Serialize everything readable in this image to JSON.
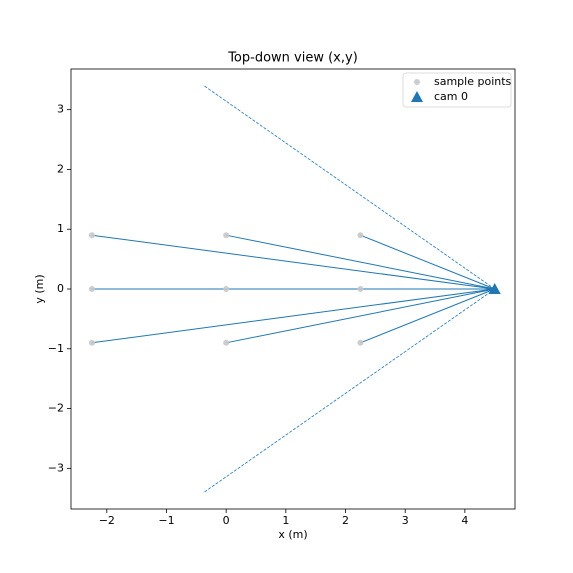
{
  "chart_data": {
    "type": "scatter",
    "title": "Top-down view (x,y)",
    "xlabel": "x (m)",
    "ylabel": "y (m)",
    "xlim": [
      -2.6,
      4.84
    ],
    "ylim": [
      -3.68,
      3.68
    ],
    "xticks": [
      {
        "value": -2,
        "label": "−2"
      },
      {
        "value": -1,
        "label": "−1"
      },
      0,
      1,
      2,
      3,
      4
    ],
    "yticks": [
      {
        "value": -3,
        "label": "−3"
      },
      {
        "value": -2,
        "label": "−2"
      },
      {
        "value": -1,
        "label": "−1"
      },
      0,
      1,
      2,
      3
    ],
    "legend": "upper right",
    "series": [
      {
        "name": "sample points",
        "color": "#c8c8c8",
        "marker": "circle",
        "x": [
          -2.25,
          0,
          2.25,
          -2.25,
          0,
          2.25,
          -2.25,
          0,
          2.25
        ],
        "y": [
          0.9,
          0.9,
          0.9,
          0,
          0,
          0,
          -0.9,
          -0.9,
          -0.9
        ]
      },
      {
        "name": "cam 0",
        "color": "#1f77b4",
        "marker": "triangle",
        "x": [
          4.5
        ],
        "y": [
          0
        ]
      }
    ],
    "fov_lines": [
      {
        "x": [
          4.5,
          -0.385
        ],
        "y": [
          0,
          3.41
        ]
      },
      {
        "x": [
          4.5,
          -0.385
        ],
        "y": [
          0,
          -3.41
        ]
      }
    ]
  }
}
